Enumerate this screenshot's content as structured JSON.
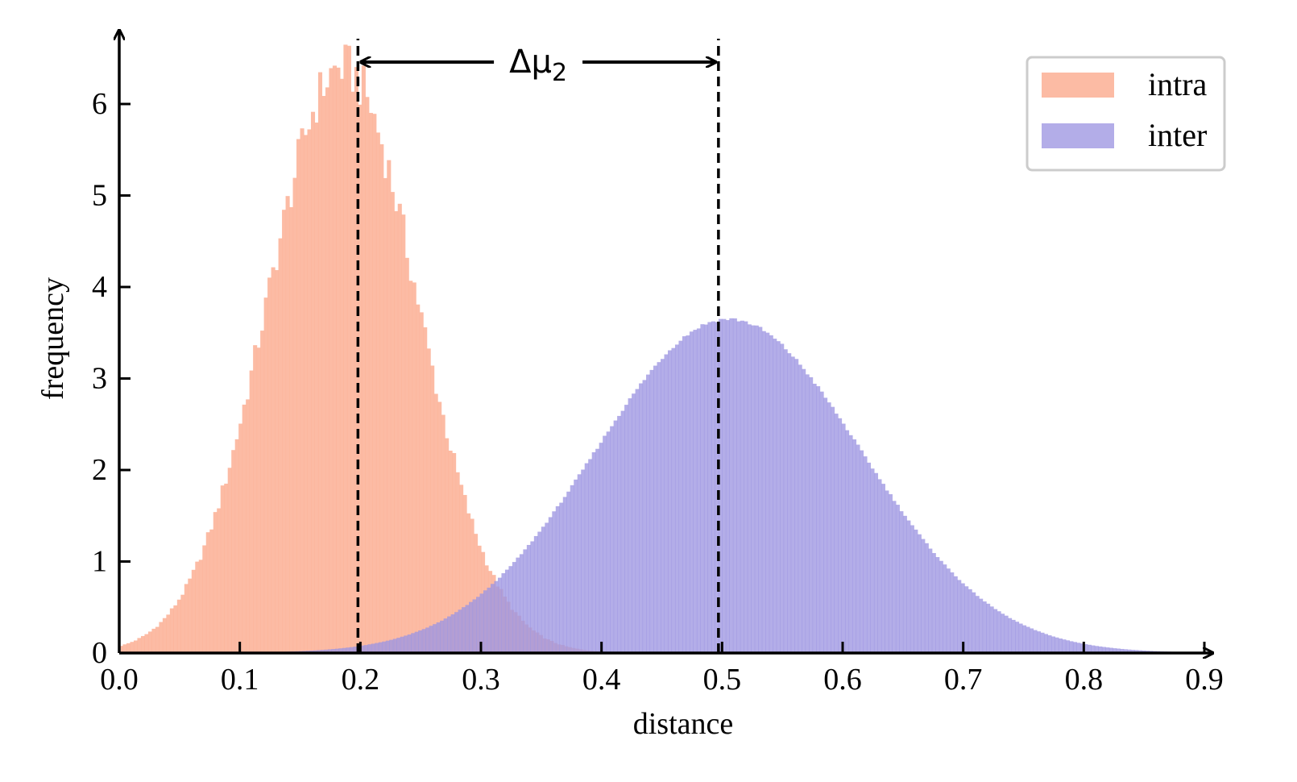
{
  "chart_data": {
    "type": "histogram",
    "xlabel": "distance",
    "ylabel": "frequency",
    "xlim": [
      0.0,
      0.9
    ],
    "ylim": [
      0,
      6.5
    ],
    "xticks": [
      "0.0",
      "0.1",
      "0.2",
      "0.3",
      "0.4",
      "0.5",
      "0.6",
      "0.7",
      "0.8",
      "0.9"
    ],
    "yticks": [
      "0",
      "1",
      "2",
      "3",
      "4",
      "5",
      "6"
    ],
    "grid": false,
    "legend_position": "top-right",
    "series": [
      {
        "name": "intra",
        "color": "#fcb49a",
        "opacity": 0.9,
        "distribution": "approx. normal",
        "mean": 0.185,
        "std": 0.062,
        "peak_frequency": 6.4
      },
      {
        "name": "inter",
        "color": "#9d96e2",
        "opacity": 0.78,
        "distribution": "approx. normal",
        "mean": 0.505,
        "std": 0.11,
        "peak_frequency": 3.65
      }
    ],
    "annotations": [
      {
        "type": "vline",
        "style": "dashed",
        "x": 0.198
      },
      {
        "type": "vline",
        "style": "dashed",
        "x": 0.497
      },
      {
        "type": "double-arrow",
        "x_start": 0.198,
        "x_end": 0.497,
        "label": "Δμ2"
      }
    ]
  }
}
